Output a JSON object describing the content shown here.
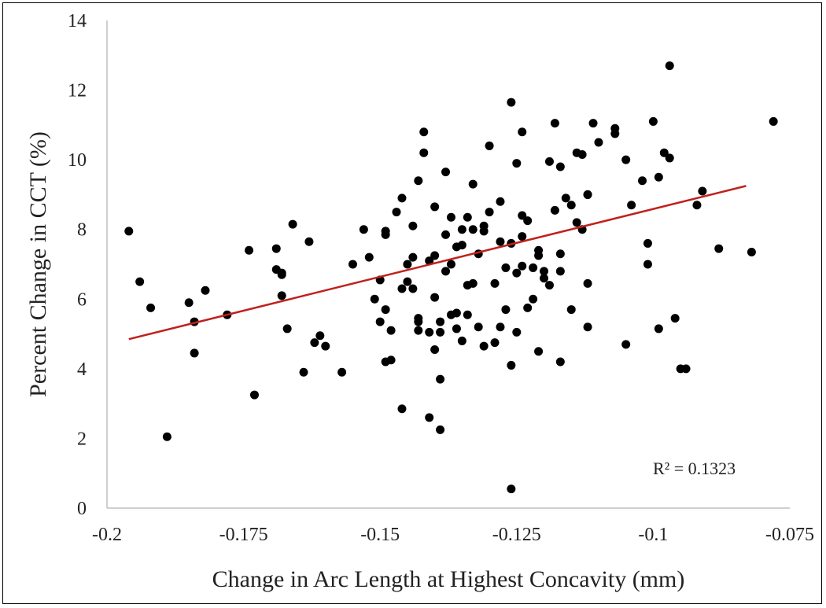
{
  "chart_data": {
    "type": "scatter",
    "xlabel": "Change in Arc Length at Highest Concavity (mm)",
    "ylabel": "Percent Change in CCT (%)",
    "xlim": [
      -0.2,
      -0.075
    ],
    "ylim": [
      0,
      14
    ],
    "xticks": [
      "-0.2",
      "-0.175",
      "-0.15",
      "-0.125",
      "-0.1",
      "-0.075"
    ],
    "yticks": [
      "0",
      "2",
      "4",
      "6",
      "8",
      "10",
      "12",
      "14"
    ],
    "grid": false,
    "legend": "none",
    "point_color": "#000000",
    "trendline": {
      "type": "linear",
      "color": "#c0201d",
      "x": [
        -0.196,
        -0.083
      ],
      "y": [
        4.85,
        9.25
      ]
    },
    "annotation": {
      "r2_label": "R² = 0.1323"
    },
    "points": [
      [
        -0.196,
        7.95
      ],
      [
        -0.194,
        6.5
      ],
      [
        -0.192,
        5.75
      ],
      [
        -0.189,
        2.05
      ],
      [
        -0.185,
        5.9
      ],
      [
        -0.184,
        5.35
      ],
      [
        -0.184,
        4.45
      ],
      [
        -0.182,
        6.25
      ],
      [
        -0.178,
        5.55
      ],
      [
        -0.174,
        7.4
      ],
      [
        -0.173,
        3.25
      ],
      [
        -0.169,
        7.45
      ],
      [
        -0.169,
        6.85
      ],
      [
        -0.168,
        6.75
      ],
      [
        -0.168,
        6.7
      ],
      [
        -0.168,
        6.1
      ],
      [
        -0.167,
        5.15
      ],
      [
        -0.166,
        8.15
      ],
      [
        -0.164,
        3.9
      ],
      [
        -0.163,
        7.65
      ],
      [
        -0.162,
        4.75
      ],
      [
        -0.161,
        4.95
      ],
      [
        -0.16,
        4.65
      ],
      [
        -0.157,
        3.9
      ],
      [
        -0.155,
        7.0
      ],
      [
        -0.153,
        8.0
      ],
      [
        -0.152,
        7.2
      ],
      [
        -0.151,
        6.0
      ],
      [
        -0.15,
        5.35
      ],
      [
        -0.15,
        6.55
      ],
      [
        -0.149,
        4.2
      ],
      [
        -0.149,
        7.95
      ],
      [
        -0.149,
        7.85
      ],
      [
        -0.149,
        5.7
      ],
      [
        -0.148,
        5.1
      ],
      [
        -0.148,
        4.25
      ],
      [
        -0.147,
        8.5
      ],
      [
        -0.146,
        2.85
      ],
      [
        -0.146,
        8.9
      ],
      [
        -0.145,
        6.5
      ],
      [
        -0.145,
        7.0
      ],
      [
        -0.144,
        8.1
      ],
      [
        -0.144,
        7.2
      ],
      [
        -0.144,
        6.3
      ],
      [
        -0.143,
        9.4
      ],
      [
        -0.143,
        5.35
      ],
      [
        -0.143,
        5.1
      ],
      [
        -0.143,
        5.45
      ],
      [
        -0.142,
        10.8
      ],
      [
        -0.142,
        10.2
      ],
      [
        -0.141,
        7.1
      ],
      [
        -0.141,
        2.6
      ],
      [
        -0.14,
        8.65
      ],
      [
        -0.14,
        7.25
      ],
      [
        -0.14,
        4.55
      ],
      [
        -0.14,
        6.05
      ],
      [
        -0.139,
        5.05
      ],
      [
        -0.139,
        5.35
      ],
      [
        -0.139,
        3.7
      ],
      [
        -0.139,
        2.25
      ],
      [
        -0.138,
        6.8
      ],
      [
        -0.138,
        7.85
      ],
      [
        -0.138,
        9.65
      ],
      [
        -0.137,
        8.35
      ],
      [
        -0.137,
        7.0
      ],
      [
        -0.137,
        5.55
      ],
      [
        -0.136,
        7.5
      ],
      [
        -0.136,
        5.15
      ],
      [
        -0.136,
        5.6
      ],
      [
        -0.135,
        8.0
      ],
      [
        -0.135,
        7.55
      ],
      [
        -0.134,
        6.4
      ],
      [
        -0.134,
        8.35
      ],
      [
        -0.134,
        5.55
      ],
      [
        -0.133,
        9.3
      ],
      [
        -0.133,
        8.0
      ],
      [
        -0.133,
        6.45
      ],
      [
        -0.132,
        7.3
      ],
      [
        -0.132,
        5.2
      ],
      [
        -0.131,
        8.1
      ],
      [
        -0.131,
        7.95
      ],
      [
        -0.131,
        4.65
      ],
      [
        -0.13,
        10.4
      ],
      [
        -0.13,
        8.5
      ],
      [
        -0.129,
        4.75
      ],
      [
        -0.129,
        6.45
      ],
      [
        -0.128,
        8.8
      ],
      [
        -0.128,
        7.65
      ],
      [
        -0.128,
        5.2
      ],
      [
        -0.127,
        6.9
      ],
      [
        -0.127,
        5.7
      ],
      [
        -0.126,
        11.65
      ],
      [
        -0.126,
        7.6
      ],
      [
        -0.126,
        4.1
      ],
      [
        -0.125,
        5.05
      ],
      [
        -0.125,
        6.75
      ],
      [
        -0.125,
        9.9
      ],
      [
        -0.124,
        10.8
      ],
      [
        -0.124,
        8.4
      ],
      [
        -0.124,
        7.8
      ],
      [
        -0.124,
        6.95
      ],
      [
        -0.123,
        8.25
      ],
      [
        -0.123,
        5.75
      ],
      [
        -0.122,
        6.0
      ],
      [
        -0.122,
        6.9
      ],
      [
        -0.121,
        7.4
      ],
      [
        -0.121,
        7.25
      ],
      [
        -0.121,
        4.5
      ],
      [
        -0.12,
        6.8
      ],
      [
        -0.12,
        6.6
      ],
      [
        -0.119,
        6.4
      ],
      [
        -0.119,
        9.95
      ],
      [
        -0.118,
        8.55
      ],
      [
        -0.118,
        11.05
      ],
      [
        -0.117,
        9.8
      ],
      [
        -0.117,
        7.3
      ],
      [
        -0.117,
        6.8
      ],
      [
        -0.117,
        4.2
      ],
      [
        -0.116,
        8.9
      ],
      [
        -0.115,
        5.7
      ],
      [
        -0.115,
        8.7
      ],
      [
        -0.114,
        10.2
      ],
      [
        -0.114,
        8.2
      ],
      [
        -0.113,
        10.15
      ],
      [
        -0.113,
        8.0
      ],
      [
        -0.112,
        5.2
      ],
      [
        -0.112,
        9.0
      ],
      [
        -0.112,
        9.0
      ],
      [
        -0.112,
        6.45
      ],
      [
        -0.111,
        11.05
      ],
      [
        -0.11,
        10.5
      ],
      [
        -0.107,
        10.9
      ],
      [
        -0.107,
        10.75
      ],
      [
        -0.105,
        10.0
      ],
      [
        -0.105,
        4.7
      ],
      [
        -0.104,
        8.7
      ],
      [
        -0.102,
        9.4
      ],
      [
        -0.101,
        7.6
      ],
      [
        -0.101,
        7.0
      ],
      [
        -0.1,
        11.1
      ],
      [
        -0.099,
        5.15
      ],
      [
        -0.099,
        9.5
      ],
      [
        -0.098,
        10.2
      ],
      [
        -0.097,
        10.05
      ],
      [
        -0.096,
        5.45
      ],
      [
        -0.095,
        4.0
      ],
      [
        -0.094,
        4.0
      ],
      [
        -0.092,
        8.7
      ],
      [
        -0.091,
        9.1
      ],
      [
        -0.088,
        7.45
      ],
      [
        -0.082,
        7.35
      ],
      [
        -0.078,
        11.1
      ],
      [
        -0.097,
        12.7
      ],
      [
        -0.126,
        0.55
      ],
      [
        -0.146,
        6.3
      ],
      [
        -0.141,
        5.05
      ],
      [
        -0.135,
        4.8
      ]
    ]
  }
}
